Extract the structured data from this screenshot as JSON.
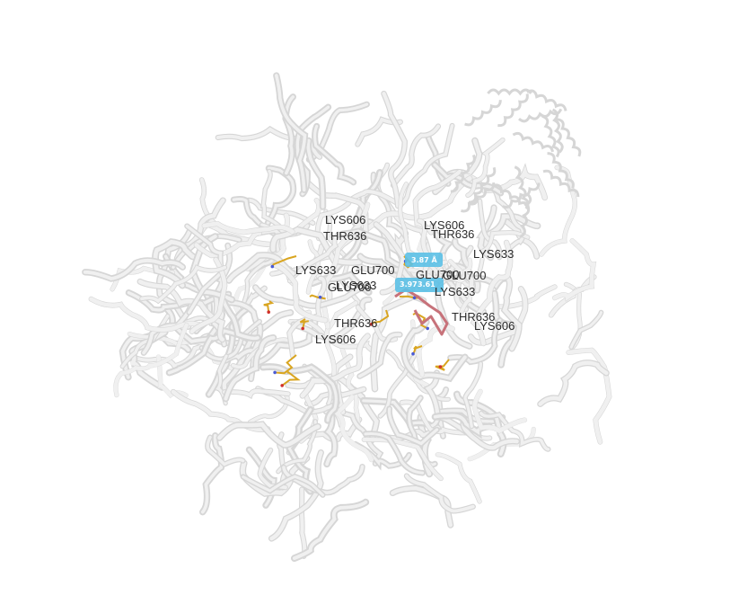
{
  "colors": {
    "background": "#ffffff",
    "ribbon": "#f0f0f0",
    "ribbon_edge": "#d6d6d6",
    "residue_stick": "#d9a520",
    "ligand_stick": "#c7727a",
    "hbond_box": "#5bc0e6",
    "label_text": "#2a2a2a"
  },
  "residue_labels": [
    "LYS606",
    "THR636",
    "LYS633",
    "GLU700",
    "LYS633",
    "GLU700",
    "THR636",
    "LYS606",
    "LYS606",
    "THR636",
    "LYS633",
    "GLU700",
    "GLU700",
    "LYS633",
    "THR636",
    "LYS606"
  ],
  "distance_labels": [
    "3.87 Å",
    "3.97",
    "3.61"
  ]
}
